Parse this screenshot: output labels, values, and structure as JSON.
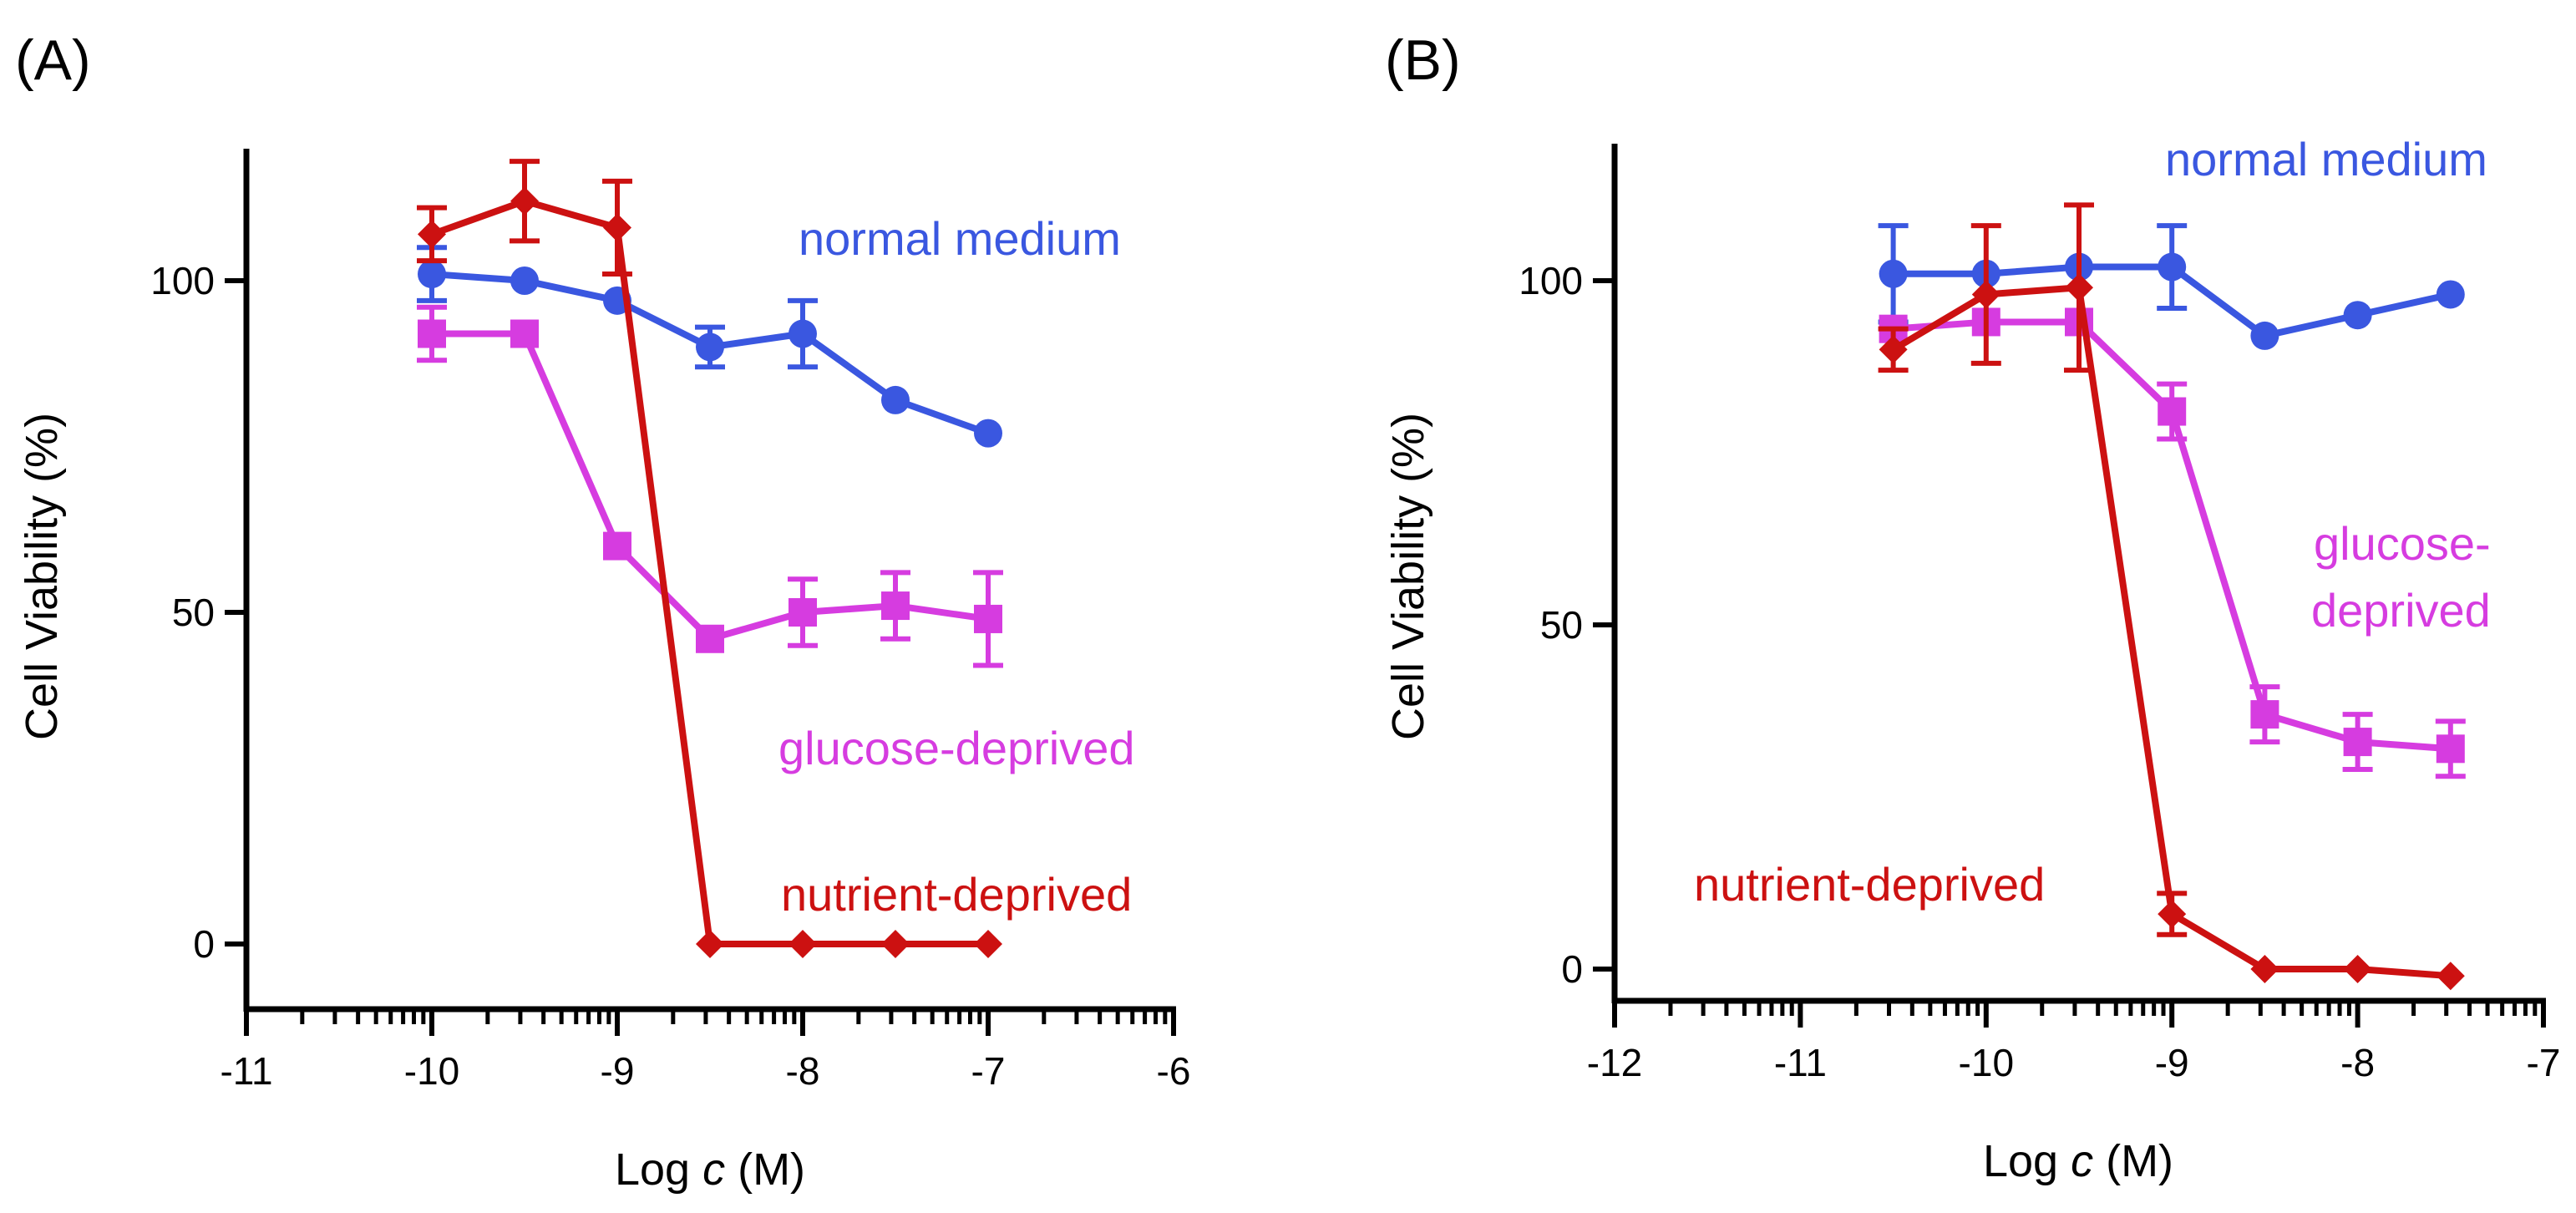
{
  "chart_data": [
    {
      "type": "line",
      "panel_label": "(A)",
      "xlabel_prefix": "Log ",
      "xlabel_var": "c",
      "xlabel_unit": " (M)",
      "ylabel": "Cell Viability (%)",
      "xlim": [
        -11,
        -6
      ],
      "ylim": [
        -10,
        120
      ],
      "xticks": [
        "-11",
        "-10",
        "-9",
        "-8",
        "-7",
        "-6"
      ],
      "yticks": [
        "0",
        "50",
        "100"
      ],
      "series": [
        {
          "name": "normal medium",
          "color": "#3a57e0",
          "marker": "circle",
          "label_lines": [
            "normal medium"
          ],
          "x": [
            -10,
            -9.5,
            -9,
            -8.5,
            -8,
            -7.5,
            -7
          ],
          "y": [
            101,
            100,
            97,
            90,
            92,
            82,
            77
          ],
          "err": [
            4,
            0,
            0,
            3,
            5,
            0,
            0
          ]
        },
        {
          "name": "glucose-deprived",
          "color": "#d63ce0",
          "marker": "square",
          "label_lines": [
            "glucose-deprived"
          ],
          "x": [
            -10,
            -9.5,
            -9,
            -8.5,
            -8,
            -7.5,
            -7
          ],
          "y": [
            92,
            92,
            60,
            46,
            50,
            51,
            49
          ],
          "err": [
            4,
            0,
            0,
            0,
            5,
            5,
            7
          ]
        },
        {
          "name": "nutrient-deprived",
          "color": "#cc1111",
          "marker": "diamond",
          "label_lines": [
            "nutrient-deprived"
          ],
          "x": [
            -10,
            -9.5,
            -9,
            -8.5,
            -8,
            -7.5,
            -7
          ],
          "y": [
            107,
            112,
            108,
            0,
            0,
            0,
            0
          ],
          "err": [
            4,
            6,
            7,
            0,
            0,
            0,
            0
          ]
        }
      ]
    },
    {
      "type": "line",
      "panel_label": "(B)",
      "xlabel_prefix": "Log ",
      "xlabel_var": "c",
      "xlabel_unit": " (M)",
      "ylabel": "Cell Viability (%)",
      "xlim": [
        -12,
        -7
      ],
      "ylim": [
        -5,
        120
      ],
      "xticks": [
        "-12",
        "-11",
        "-10",
        "-9",
        "-8",
        "-7"
      ],
      "yticks": [
        "0",
        "50",
        "100"
      ],
      "series": [
        {
          "name": "normal medium",
          "color": "#3a57e0",
          "marker": "circle",
          "label_lines": [
            "normal medium"
          ],
          "x": [
            -10.5,
            -10,
            -9.5,
            -9,
            -8.5,
            -8,
            -7.5
          ],
          "y": [
            101,
            101,
            102,
            102,
            92,
            95,
            98
          ],
          "err": [
            7,
            0,
            0,
            6,
            0,
            0,
            0
          ]
        },
        {
          "name": "glucose-deprived",
          "color": "#d63ce0",
          "marker": "square",
          "label_lines": [
            "glucose-",
            "deprived"
          ],
          "x": [
            -10.5,
            -10,
            -9.5,
            -9,
            -8.5,
            -8,
            -7.5
          ],
          "y": [
            93,
            94,
            94,
            81,
            37,
            33,
            32
          ],
          "err": [
            0,
            0,
            0,
            4,
            4,
            4,
            4
          ]
        },
        {
          "name": "nutrient-deprived",
          "color": "#cc1111",
          "marker": "diamond",
          "label_lines": [
            "nutrient-deprived"
          ],
          "x": [
            -10.5,
            -10,
            -9.5,
            -9,
            -8.5,
            -8,
            -7.5
          ],
          "y": [
            90,
            98,
            99,
            8,
            0,
            0,
            -1
          ],
          "err": [
            3,
            10,
            12,
            3,
            0,
            0,
            0
          ]
        }
      ]
    }
  ]
}
